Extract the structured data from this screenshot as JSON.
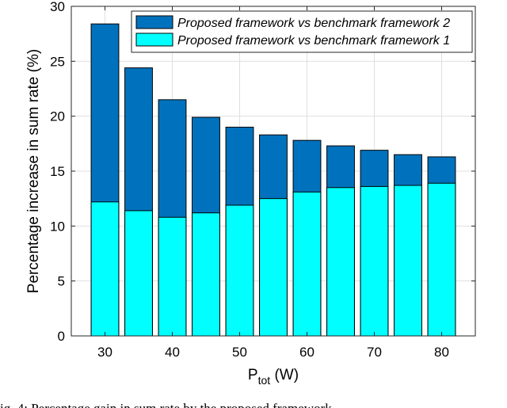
{
  "chart_data": {
    "type": "bar",
    "x": [
      30,
      35,
      40,
      45,
      50,
      55,
      60,
      65,
      70,
      75,
      80
    ],
    "series": [
      {
        "name": "Proposed framework vs benchmark framework 2",
        "color": "#0072BD",
        "values": [
          28.4,
          24.4,
          21.5,
          19.9,
          19.0,
          18.3,
          17.8,
          17.3,
          16.9,
          16.5,
          16.3
        ]
      },
      {
        "name": "Proposed framework vs benchmark framework 1",
        "color": "#00FFFF",
        "values": [
          12.2,
          11.4,
          10.8,
          11.2,
          11.9,
          12.5,
          13.1,
          13.5,
          13.6,
          13.7,
          13.9
        ]
      }
    ],
    "xticks": [
      30,
      40,
      50,
      60,
      70,
      80
    ],
    "yticks": [
      0,
      5,
      10,
      15,
      20,
      25,
      30
    ],
    "ylim": [
      0,
      30
    ],
    "xlim": [
      25,
      85
    ],
    "xlabel_main": "P",
    "xlabel_sub": "tot",
    "xlabel_unit": " (W)",
    "ylabel": "Percentage increase in sum rate (%)",
    "grid": true,
    "legend_position": "top-right"
  },
  "caption": "ig. 4: Percentage gain in sum rate by the proposed framework"
}
